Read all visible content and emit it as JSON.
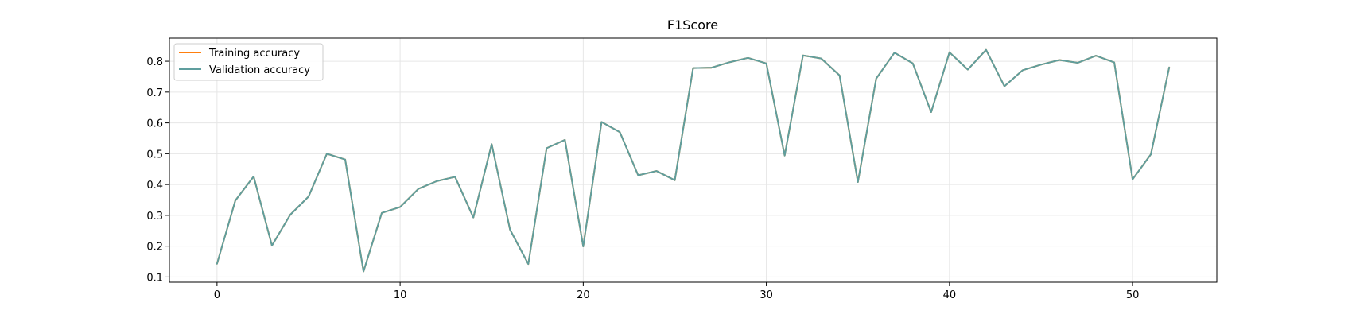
{
  "chart_data": {
    "type": "line",
    "title": "F1Score",
    "xlabel": "",
    "ylabel": "",
    "xlim": [
      -2.6,
      54.6
    ],
    "ylim": [
      0.083,
      0.875
    ],
    "xticks": [
      0,
      10,
      20,
      30,
      40,
      50
    ],
    "yticks": [
      0.1,
      0.2,
      0.3,
      0.4,
      0.5,
      0.6,
      0.7,
      0.8
    ],
    "grid": true,
    "legend_position": "top-left",
    "x": [
      0,
      1,
      2,
      3,
      4,
      5,
      6,
      7,
      8,
      9,
      10,
      11,
      12,
      13,
      14,
      15,
      16,
      17,
      18,
      19,
      20,
      21,
      22,
      23,
      24,
      25,
      26,
      27,
      28,
      29,
      30,
      31,
      32,
      33,
      34,
      35,
      36,
      37,
      38,
      39,
      40,
      41,
      42,
      43,
      44,
      45,
      46,
      47,
      48,
      49,
      50,
      51,
      52
    ],
    "series": [
      {
        "name": "Training accuracy",
        "color": "#ff7f0e",
        "values": [
          0.143,
          0.348,
          0.426,
          0.202,
          0.302,
          0.361,
          0.5,
          0.481,
          0.118,
          0.308,
          0.327,
          0.386,
          0.411,
          0.425,
          0.293,
          0.531,
          0.254,
          0.142,
          0.518,
          0.545,
          0.199,
          0.603,
          0.57,
          0.43,
          0.444,
          0.414,
          0.778,
          0.779,
          0.797,
          0.811,
          0.793,
          0.494,
          0.819,
          0.809,
          0.754,
          0.408,
          0.744,
          0.828,
          0.793,
          0.635,
          0.829,
          0.773,
          0.837,
          0.719,
          0.771,
          0.789,
          0.804,
          0.795,
          0.818,
          0.796,
          0.417,
          0.498,
          0.78
        ]
      },
      {
        "name": "Validation accuracy",
        "color": "#5f9e9e",
        "values": [
          0.143,
          0.348,
          0.426,
          0.202,
          0.302,
          0.361,
          0.5,
          0.481,
          0.118,
          0.308,
          0.327,
          0.386,
          0.411,
          0.425,
          0.293,
          0.531,
          0.254,
          0.142,
          0.518,
          0.545,
          0.199,
          0.603,
          0.57,
          0.43,
          0.444,
          0.414,
          0.778,
          0.779,
          0.797,
          0.811,
          0.793,
          0.494,
          0.819,
          0.809,
          0.754,
          0.408,
          0.744,
          0.828,
          0.793,
          0.635,
          0.829,
          0.773,
          0.837,
          0.719,
          0.771,
          0.789,
          0.804,
          0.795,
          0.818,
          0.796,
          0.417,
          0.498,
          0.78
        ]
      }
    ]
  }
}
